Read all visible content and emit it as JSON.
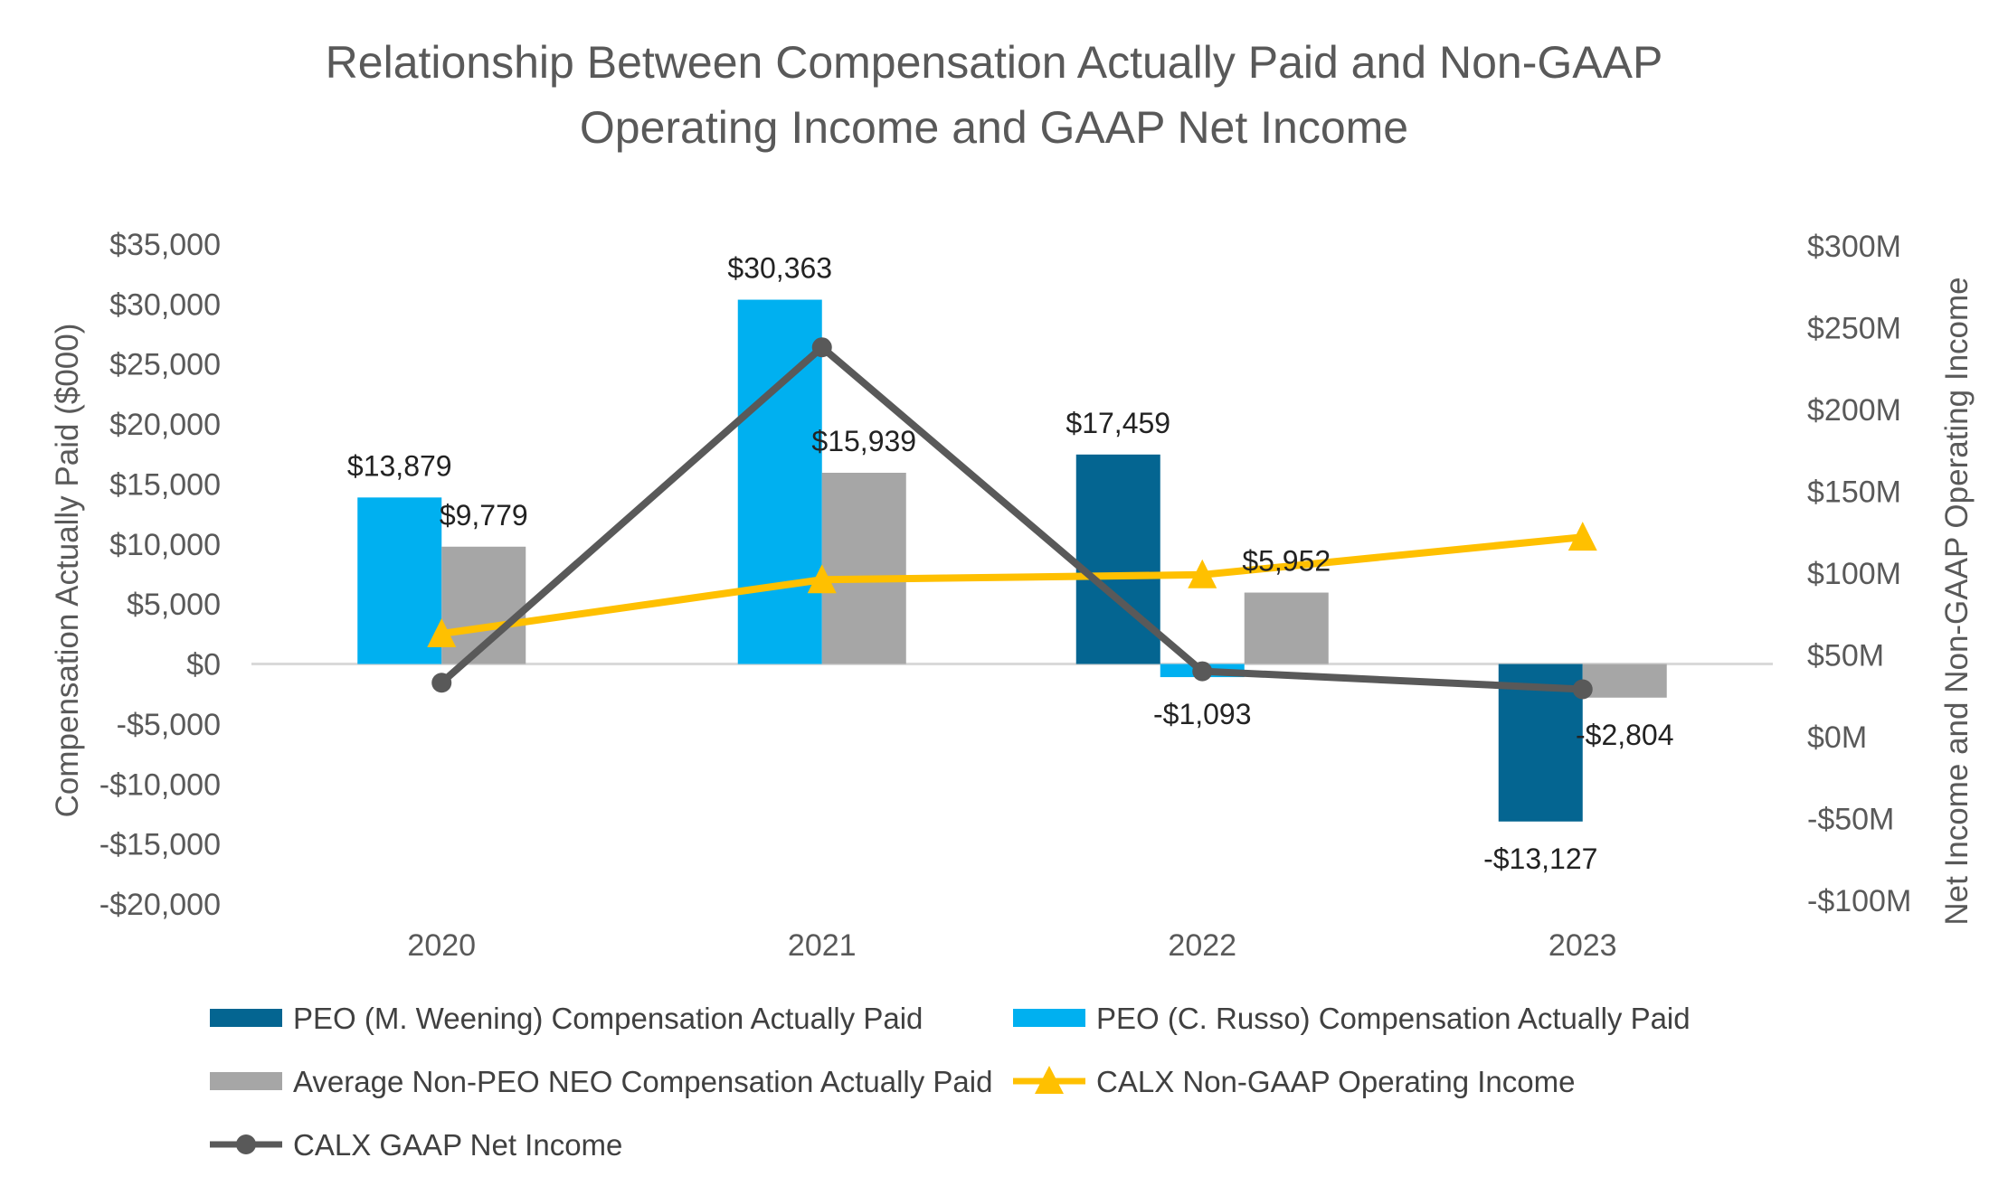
{
  "chart_data": {
    "type": "bar",
    "title_lines": [
      "Relationship Between Compensation Actually Paid and Non-GAAP",
      "Operating Income and GAAP Net Income"
    ],
    "categories": [
      "2020",
      "2021",
      "2022",
      "2023"
    ],
    "ylabel": "Compensation Actually Paid ($000)",
    "y2label": "Net Income and Non-GAAP Operating Income",
    "ylim": [
      -20000,
      35000
    ],
    "y2lim": [
      -100,
      300
    ],
    "y_ticks": [
      35000,
      30000,
      25000,
      20000,
      15000,
      10000,
      5000,
      0,
      -5000,
      -10000,
      -15000,
      -20000
    ],
    "y_tick_labels": [
      "$35,000",
      "$30,000",
      "$25,000",
      "$20,000",
      "$15,000",
      "$10,000",
      "$5,000",
      "$0",
      "-$5,000",
      "-$10,000",
      "-$15,000",
      "-$20,000"
    ],
    "y2_ticks": [
      300,
      250,
      200,
      150,
      100,
      50,
      0,
      -50,
      -100
    ],
    "y2_tick_labels": [
      "$300M",
      "$250M",
      "$200M",
      "$150M",
      "$100M",
      "$50M",
      "$0M",
      "-$50M",
      "-$100M"
    ],
    "bar_series": [
      {
        "name": "PEO (M. Weening) Compensation Actually Paid",
        "color": "#046591",
        "values": [
          null,
          null,
          17459,
          -13127
        ],
        "labels": [
          "",
          "",
          "$17,459",
          "-$13,127"
        ]
      },
      {
        "name": "PEO (C. Russo) Compensation Actually Paid",
        "color": "#00B0F0",
        "values": [
          13879,
          30363,
          -1093,
          null
        ],
        "labels": [
          "$13,879",
          "$30,363",
          "-$1,093",
          ""
        ]
      },
      {
        "name": "Average Non-PEO NEO Compensation Actually Paid",
        "color": "#A6A6A6",
        "values": [
          9779,
          15939,
          5952,
          -2804
        ],
        "labels": [
          "$9,779",
          "$15,939",
          "$5,952",
          "-$2,804"
        ]
      }
    ],
    "line_series": [
      {
        "name": "CALX Non-GAAP Operating Income",
        "color": "#FFC000",
        "marker": "triangle",
        "values": [
          63,
          96,
          99,
          122
        ]
      },
      {
        "name": "CALX GAAP Net Income",
        "color": "#595959",
        "marker": "circle",
        "values": [
          33,
          238,
          40,
          29
        ]
      }
    ],
    "legend": {
      "placement": "bottom",
      "items": [
        {
          "label": "PEO (M. Weening) Compensation Actually Paid",
          "kind": "bar",
          "color": "#046591"
        },
        {
          "label": "PEO (C. Russo) Compensation Actually Paid",
          "kind": "bar",
          "color": "#00B0F0"
        },
        {
          "label": "Average Non-PEO NEO Compensation Actually Paid",
          "kind": "bar",
          "color": "#A6A6A6"
        },
        {
          "label": "CALX Non-GAAP Operating Income",
          "kind": "triangle",
          "color": "#FFC000"
        },
        {
          "label": "CALX GAAP Net Income",
          "kind": "circle",
          "color": "#595959"
        }
      ]
    },
    "grid": false
  }
}
